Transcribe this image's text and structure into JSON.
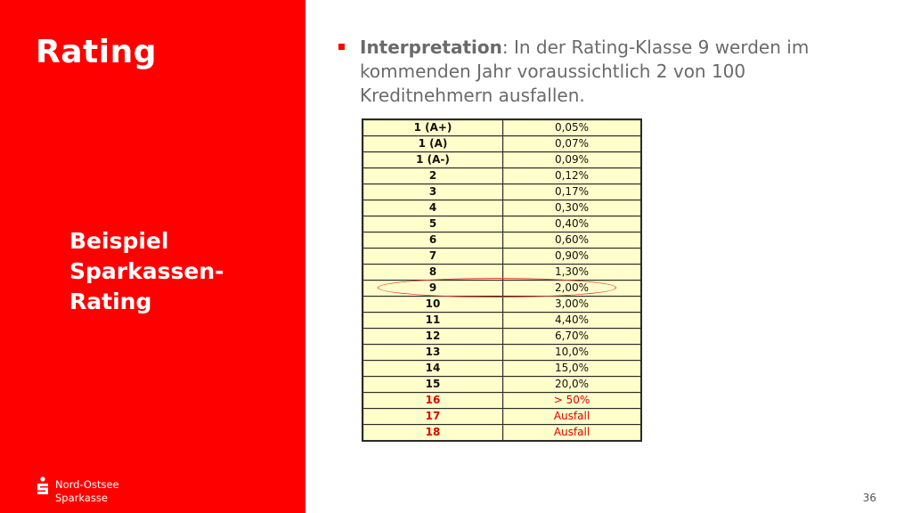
{
  "slide": {
    "title": "Rating",
    "subtitle_lines": [
      "Beispiel",
      "Sparkassen-",
      "Rating"
    ],
    "bullet": {
      "label": "Interpretation",
      "text": ": In der Rating-Klasse 9 werden im kommenden Jahr voraussichtlich 2 von 100 Kreditnehmern ausfallen."
    },
    "logo": {
      "lines": [
        "Nord-Ostsee",
        "Sparkasse"
      ],
      "icon": "sparkasse-s-icon"
    },
    "page_number": "36",
    "colors": {
      "brand_red": "#ff0000",
      "table_bg": "#ffffcc",
      "warning_red": "#e00000"
    }
  },
  "rating_table": {
    "rows": [
      {
        "class": "1 (A+)",
        "rate": "0,05%"
      },
      {
        "class": "1 (A)",
        "rate": "0,07%"
      },
      {
        "class": "1 (A-)",
        "rate": "0,09%"
      },
      {
        "class": "2",
        "rate": "0,12%"
      },
      {
        "class": "3",
        "rate": "0,17%"
      },
      {
        "class": "4",
        "rate": "0,30%"
      },
      {
        "class": "5",
        "rate": "0,40%"
      },
      {
        "class": "6",
        "rate": "0,60%"
      },
      {
        "class": "7",
        "rate": "0,90%"
      },
      {
        "class": "8",
        "rate": "1,30%"
      },
      {
        "class": "9",
        "rate": "2,00%",
        "highlighted": true
      },
      {
        "class": "10",
        "rate": "3,00%"
      },
      {
        "class": "11",
        "rate": "4,40%"
      },
      {
        "class": "12",
        "rate": "6,70%"
      },
      {
        "class": "13",
        "rate": "10,0%"
      },
      {
        "class": "14",
        "rate": "15,0%"
      },
      {
        "class": "15",
        "rate": "20,0%"
      },
      {
        "class": "16",
        "rate": "> 50%",
        "warning": true
      },
      {
        "class": "17",
        "rate": "Ausfall",
        "warning": true
      },
      {
        "class": "18",
        "rate": "Ausfall",
        "warning": true
      }
    ]
  }
}
